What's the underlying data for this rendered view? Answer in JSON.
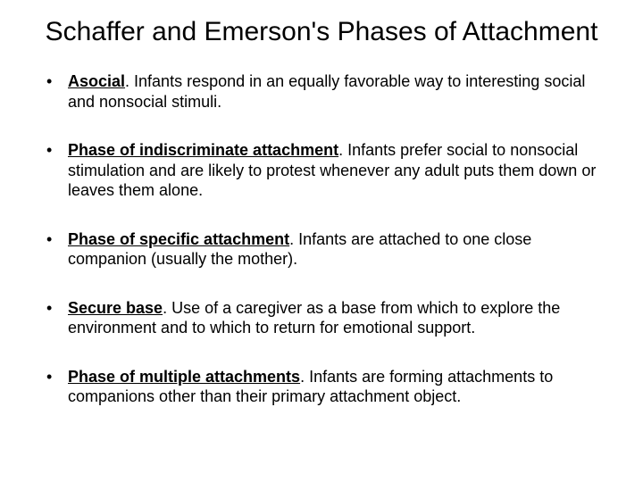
{
  "slide": {
    "title": "Schaffer and Emerson's Phases of Attachment",
    "background_color": "#ffffff",
    "text_color": "#000000",
    "title_fontsize": 30,
    "body_fontsize": 18,
    "font_family": "Arial",
    "bullets": [
      {
        "phase": "Asocial",
        "description": ".  Infants respond in an equally favorable way to interesting social and nonsocial stimuli."
      },
      {
        "phase": "Phase of indiscriminate attachment",
        "description": ".  Infants prefer social to nonsocial stimulation and are likely to protest whenever any adult puts them down or leaves them alone."
      },
      {
        "phase": "Phase of specific attachment",
        "description": ".  Infants are attached to one close companion (usually the mother)."
      },
      {
        "phase": "Secure base",
        "description": ".  Use of a caregiver as a base from which to explore the environment and to which to return for emotional support."
      },
      {
        "phase": "Phase of multiple attachments",
        "description": ".  Infants are forming attachments to companions other than their primary attachment object."
      }
    ]
  }
}
